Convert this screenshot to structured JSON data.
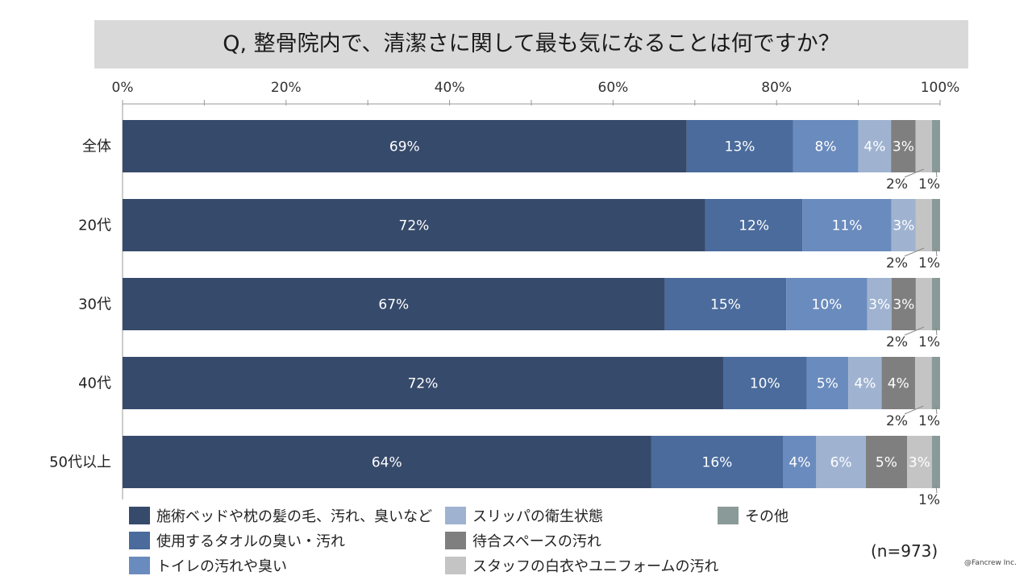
{
  "title": "Q, 整骨院内で、清潔さに関して最も気になることは何ですか？",
  "n_label": "(n=973)",
  "copyright": "@Fancrew Inc.",
  "chart_data": {
    "type": "bar",
    "orientation": "horizontal",
    "stacked": true,
    "title": "Q, 整骨院内で、清潔さに関して最も気になることは何ですか？",
    "xlim": [
      0,
      100
    ],
    "x_ticks": [
      0,
      20,
      40,
      60,
      80,
      100
    ],
    "x_tick_labels": [
      "0%",
      "20%",
      "40%",
      "60%",
      "80%",
      "100%"
    ],
    "axis_position": "top",
    "legend_position": "bottom",
    "categories": [
      "全体",
      "20代",
      "30代",
      "40代",
      "50代以上"
    ],
    "series": [
      {
        "name": "施術ベッドや枕の髪の毛、汚れ、臭いなど",
        "color": "#364a6b",
        "values": [
          69,
          72,
          67,
          72,
          64
        ],
        "labels": [
          "69%",
          "72%",
          "67%",
          "72%",
          "64%"
        ]
      },
      {
        "name": "使用するタオルの臭い・汚れ",
        "color": "#4a6b9c",
        "values": [
          13,
          12,
          15,
          10,
          16
        ],
        "labels": [
          "13%",
          "12%",
          "15%",
          "10%",
          "16%"
        ]
      },
      {
        "name": "トイレの汚れや臭い",
        "color": "#6a8bbd",
        "values": [
          8,
          11,
          10,
          5,
          4
        ],
        "labels": [
          "8%",
          "11%",
          "10%",
          "5%",
          "4%"
        ]
      },
      {
        "name": "スリッパの衛生状態",
        "color": "#9fb3d1",
        "values": [
          4,
          3,
          3,
          4,
          6
        ],
        "labels": [
          "4%",
          "3%",
          "3%",
          "4%",
          "6%"
        ]
      },
      {
        "name": "待合スペースの汚れ",
        "color": "#7f7f7f",
        "values": [
          3,
          0,
          3,
          4,
          5
        ],
        "labels": [
          "3%",
          "",
          "3%",
          "4%",
          "5%"
        ]
      },
      {
        "name": "スタッフの白衣やユニフォームの汚れ",
        "color": "#c4c4c4",
        "values": [
          2,
          2,
          2,
          2,
          3
        ],
        "labels": [
          "2%",
          "2%",
          "2%",
          "2%",
          "3%"
        ]
      },
      {
        "name": "その他",
        "color": "#8a9a98",
        "values": [
          1,
          1,
          1,
          1,
          1
        ],
        "labels": [
          "1%",
          "1%",
          "1%",
          "1%",
          "1%"
        ]
      }
    ]
  }
}
